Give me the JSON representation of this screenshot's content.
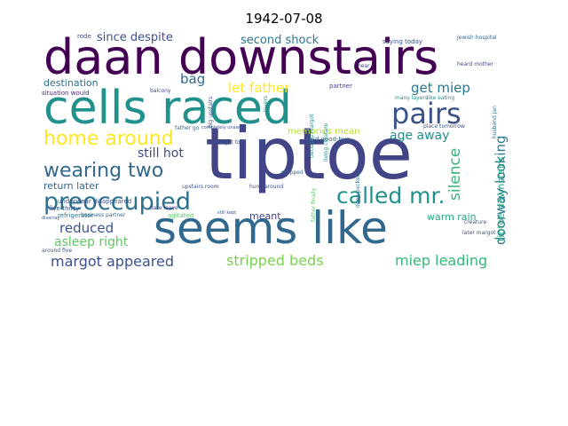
{
  "title": "1942-07-08",
  "words": [
    {
      "text": "daan downstairs",
      "color": "#440154"
    },
    {
      "text": "tiptoe",
      "color": "#414487"
    },
    {
      "text": "cells raced",
      "color": "#21918c"
    },
    {
      "text": "seems like",
      "color": "#31688e"
    },
    {
      "text": "pairs",
      "color": "#3b528b"
    },
    {
      "text": "preoccupied",
      "color": "#2c728e"
    },
    {
      "text": "home around",
      "color": "#fde725"
    },
    {
      "text": "wearing two",
      "color": "#31688e"
    },
    {
      "text": "called mr.",
      "color": "#21918c"
    },
    {
      "text": "silence",
      "color": "#35b779"
    },
    {
      "text": "doorway looking",
      "color": "#2a788e"
    },
    {
      "text": "stripped beds",
      "color": "#7ad151"
    },
    {
      "text": "miep leading",
      "color": "#35b779"
    },
    {
      "text": "margot appeared",
      "color": "#3b528b"
    },
    {
      "text": "reduced",
      "color": "#3b528b"
    },
    {
      "text": "asleep right",
      "color": "#5ec962"
    },
    {
      "text": "let father",
      "color": "#fde725"
    },
    {
      "text": "get miep",
      "color": "#2a788e"
    },
    {
      "text": "since despite",
      "color": "#3b528b"
    },
    {
      "text": "second shock",
      "color": "#2a788e"
    },
    {
      "text": "bag",
      "color": "#31688e"
    },
    {
      "text": "destination",
      "color": "#2c728e"
    },
    {
      "text": "still hot",
      "color": "#3e4989"
    },
    {
      "text": "age away",
      "color": "#21918c"
    },
    {
      "text": "return later",
      "color": "#31688e"
    },
    {
      "text": "memories mean",
      "color": "#b5de2b"
    },
    {
      "text": "warm rain",
      "color": "#22a884"
    },
    {
      "text": "meant",
      "color": "#414487"
    },
    {
      "text": "tiptoe downstairs",
      "color": "#22a884"
    },
    {
      "text": "rode",
      "color": "#3e4989"
    },
    {
      "text": "saying today",
      "color": "#3b528b"
    },
    {
      "text": "jewish hospital",
      "color": "#31688e"
    },
    {
      "text": "heard mother",
      "color": "#3e4989"
    },
    {
      "text": "situation would",
      "color": "#482878"
    },
    {
      "text": "refrigerator",
      "color": "#2c728e"
    },
    {
      "text": "underwear disappeared",
      "color": "#3b528b"
    },
    {
      "text": "five-thirty",
      "color": "#3b528b"
    },
    {
      "text": "business partner",
      "color": "#31688e"
    },
    {
      "text": "agitated",
      "color": "#5ec962"
    },
    {
      "text": "around five",
      "color": "#3b528b"
    },
    {
      "text": "partner",
      "color": "#3e4989"
    },
    {
      "text": "many layers",
      "color": "#21918c"
    },
    {
      "text": "like eating",
      "color": "#21918c"
    },
    {
      "text": "big upstairs",
      "color": "#3b528b"
    },
    {
      "text": "margot told",
      "color": "#3b528b"
    },
    {
      "text": "father go",
      "color": "#31688e"
    },
    {
      "text": "dare leave",
      "color": "#414487"
    },
    {
      "text": "upstairs room",
      "color": "#3b528b"
    },
    {
      "text": "said good-bye",
      "color": "#31688e"
    },
    {
      "text": "living creature",
      "color": "#21918c"
    },
    {
      "text": "declared margot",
      "color": "#21918c"
    },
    {
      "text": "later margot",
      "color": "#3b528b"
    },
    {
      "text": "deep pockets",
      "color": "#2c728e"
    },
    {
      "text": "father finally",
      "color": "#5ec962"
    },
    {
      "text": "creature",
      "color": "#3b528b"
    },
    {
      "text": "balcony",
      "color": "#3e4989"
    },
    {
      "text": "hear",
      "color": "#3e4989"
    },
    {
      "text": "stripped",
      "color": "#31688e"
    },
    {
      "text": "layers",
      "color": "#21918c"
    },
    {
      "text": "hung around",
      "color": "#3b528b"
    },
    {
      "text": "place tomorrow",
      "color": "#3b528b"
    },
    {
      "text": "husband jan",
      "color": "#2c728e"
    },
    {
      "text": "completely unaware",
      "color": "#3b528b"
    },
    {
      "text": "disarray",
      "color": "#3b528b"
    },
    {
      "text": "still kept",
      "color": "#3b528b"
    }
  ]
}
